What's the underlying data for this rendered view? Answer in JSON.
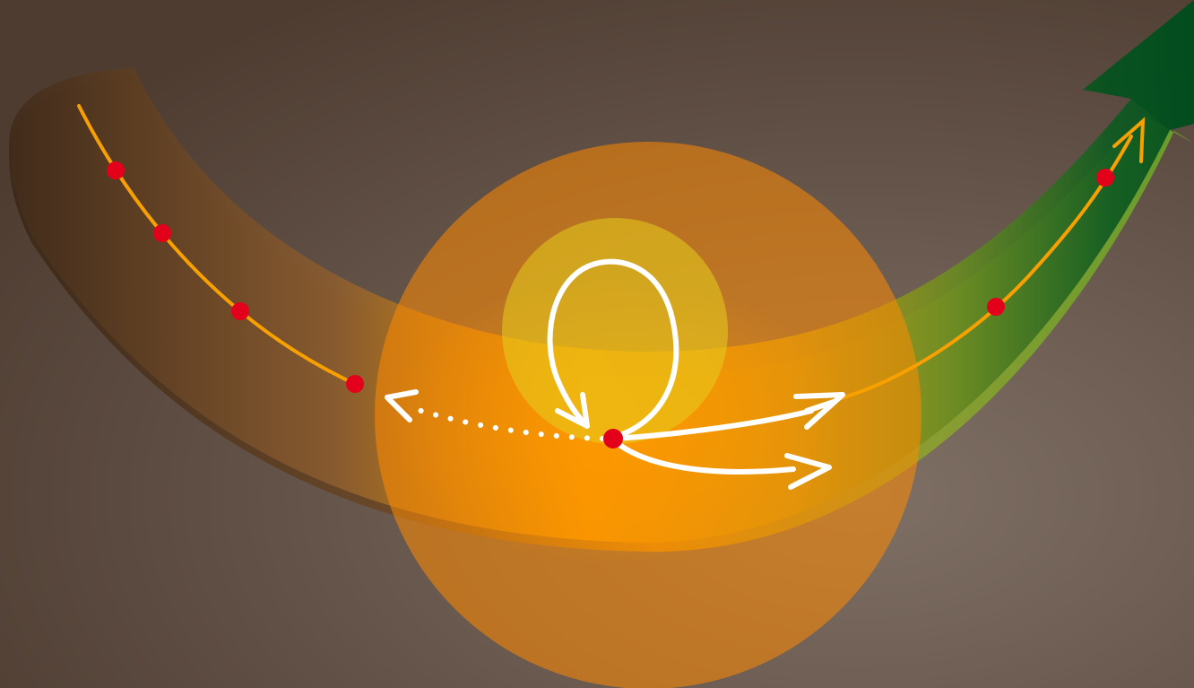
{
  "diagram": {
    "background_colors": {
      "center": "#7f7066",
      "edge": "#4e3c31"
    },
    "band_colors": {
      "dark": "#3f2a1a",
      "bronze": "#8a5c30",
      "orange": "#f7a400",
      "gold": "#c39f18",
      "olive": "#6a8a22",
      "green": "#0f5a22",
      "deep_green": "#004d1e",
      "rim_green": "#68a02a"
    },
    "path_color": "#f7a000",
    "node_color": "#e3001b",
    "arrow_color": "#ffffff",
    "outer_circle_color": "#ff8a00",
    "inner_circle_color": "#e6cd1d",
    "nodes": [
      {
        "name": "node-1",
        "role": "trail-point"
      },
      {
        "name": "node-2",
        "role": "trail-point"
      },
      {
        "name": "node-3",
        "role": "trail-point"
      },
      {
        "name": "node-4",
        "role": "trail-point"
      },
      {
        "name": "node-center",
        "role": "current-point"
      },
      {
        "name": "node-6",
        "role": "trail-point"
      },
      {
        "name": "node-7",
        "role": "trail-point"
      }
    ],
    "arrows": [
      {
        "name": "back-arrow",
        "style": "dotted",
        "icon": "arrow-left-icon"
      },
      {
        "name": "loop-arrow",
        "style": "solid",
        "icon": "loop-arrow-icon"
      },
      {
        "name": "forward-arrow-upper",
        "style": "solid",
        "icon": "arrow-right-icon"
      },
      {
        "name": "forward-arrow-lower",
        "style": "solid",
        "icon": "arrow-right-icon"
      }
    ]
  }
}
